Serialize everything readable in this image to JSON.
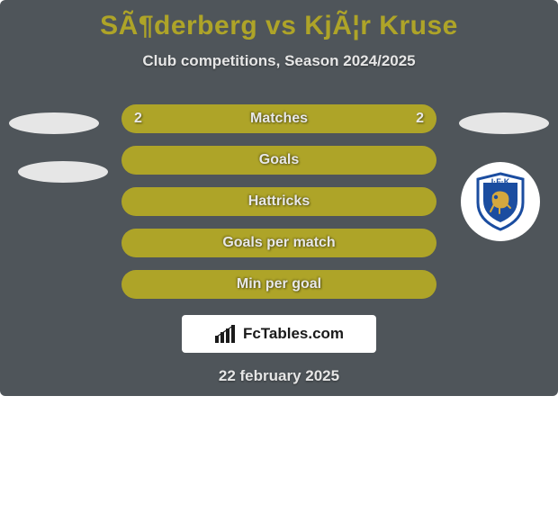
{
  "colors": {
    "card_bg": "#4f555a",
    "title": "#aea428",
    "subtitle": "#e6e6e6",
    "row_track": "#4f555a",
    "row_fill": "#aea428",
    "row_label": "#e8e8e8",
    "ellipse": "#e6e6e6",
    "date": "#e6e6e6",
    "brand_bg": "#ffffff",
    "brand_text": "#1a1a1a",
    "badge_blue": "#1b4da0",
    "badge_gold": "#d4a83e"
  },
  "title": "SÃ¶derberg vs KjÃ¦r Kruse",
  "subtitle": "Club competitions, Season 2024/2025",
  "date": "22 february 2025",
  "brand": "FcTables.com",
  "stats": [
    {
      "label": "Matches",
      "left_value": "2",
      "right_value": "2",
      "left_pct": 50,
      "right_pct": 50,
      "show_values": true
    },
    {
      "label": "Goals",
      "left_value": "",
      "right_value": "",
      "left_pct": 100,
      "right_pct": 0,
      "show_values": false
    },
    {
      "label": "Hattricks",
      "left_value": "",
      "right_value": "",
      "left_pct": 100,
      "right_pct": 0,
      "show_values": false
    },
    {
      "label": "Goals per match",
      "left_value": "",
      "right_value": "",
      "left_pct": 100,
      "right_pct": 0,
      "show_values": false
    },
    {
      "label": "Min per goal",
      "left_value": "",
      "right_value": "",
      "left_pct": 100,
      "right_pct": 0,
      "show_values": false
    }
  ]
}
